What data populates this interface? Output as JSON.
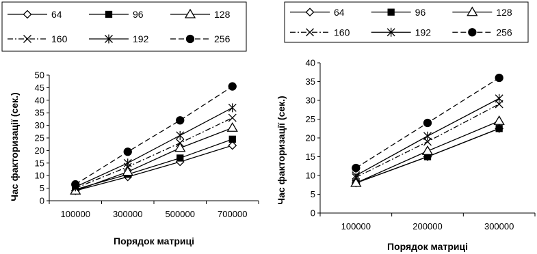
{
  "chart_data": [
    {
      "type": "line",
      "xlabel": "Порядок матриці",
      "ylabel": "Час факторизації (сек.)",
      "categories": [
        "100000",
        "300000",
        "500000",
        "700000"
      ],
      "ylim": [
        0,
        50
      ],
      "yticks": [
        "0",
        "5",
        "10",
        "15",
        "20",
        "25",
        "30",
        "35",
        "40",
        "45",
        "50"
      ],
      "grid": false,
      "legend": "top",
      "series": [
        {
          "name": "64",
          "values": [
            4.0,
            9.5,
            15.5,
            22.0
          ]
        },
        {
          "name": "96",
          "values": [
            4.5,
            10.5,
            17.0,
            24.5
          ]
        },
        {
          "name": "128",
          "values": [
            4.0,
            11.5,
            21.0,
            29.0
          ]
        },
        {
          "name": "160",
          "values": [
            5.0,
            13.5,
            23.0,
            33.0
          ]
        },
        {
          "name": "192",
          "values": [
            5.5,
            15.0,
            26.0,
            37.0
          ]
        },
        {
          "name": "256",
          "values": [
            6.5,
            19.5,
            32.0,
            45.5
          ]
        }
      ]
    },
    {
      "type": "line",
      "xlabel": "Порядок матриці",
      "ylabel": "Час факторизації (сек.)",
      "categories": [
        "100000",
        "200000",
        "300000"
      ],
      "ylim": [
        0,
        40
      ],
      "yticks": [
        "0",
        "5",
        "10",
        "15",
        "20",
        "25",
        "30",
        "35",
        "40"
      ],
      "grid": false,
      "legend": "top",
      "series": [
        {
          "name": "64",
          "values": [
            8.0,
            15.0,
            22.5
          ]
        },
        {
          "name": "96",
          "values": [
            8.0,
            15.0,
            22.5
          ]
        },
        {
          "name": "128",
          "values": [
            8.0,
            16.5,
            24.5
          ]
        },
        {
          "name": "160",
          "values": [
            9.5,
            19.0,
            29.0
          ]
        },
        {
          "name": "192",
          "values": [
            10.0,
            20.5,
            30.5
          ]
        },
        {
          "name": "256",
          "values": [
            12.0,
            24.0,
            36.0
          ]
        }
      ]
    }
  ],
  "series_styles": [
    {
      "marker": "diamond-open",
      "dash": "solid"
    },
    {
      "marker": "square-filled",
      "dash": "solid"
    },
    {
      "marker": "triangle-open",
      "dash": "solid"
    },
    {
      "marker": "x-cross",
      "dash": "dash-dot"
    },
    {
      "marker": "asterisk",
      "dash": "solid"
    },
    {
      "marker": "circle-filled",
      "dash": "dashed"
    }
  ],
  "colors": {
    "line": "#000000",
    "background": "#ffffff"
  }
}
